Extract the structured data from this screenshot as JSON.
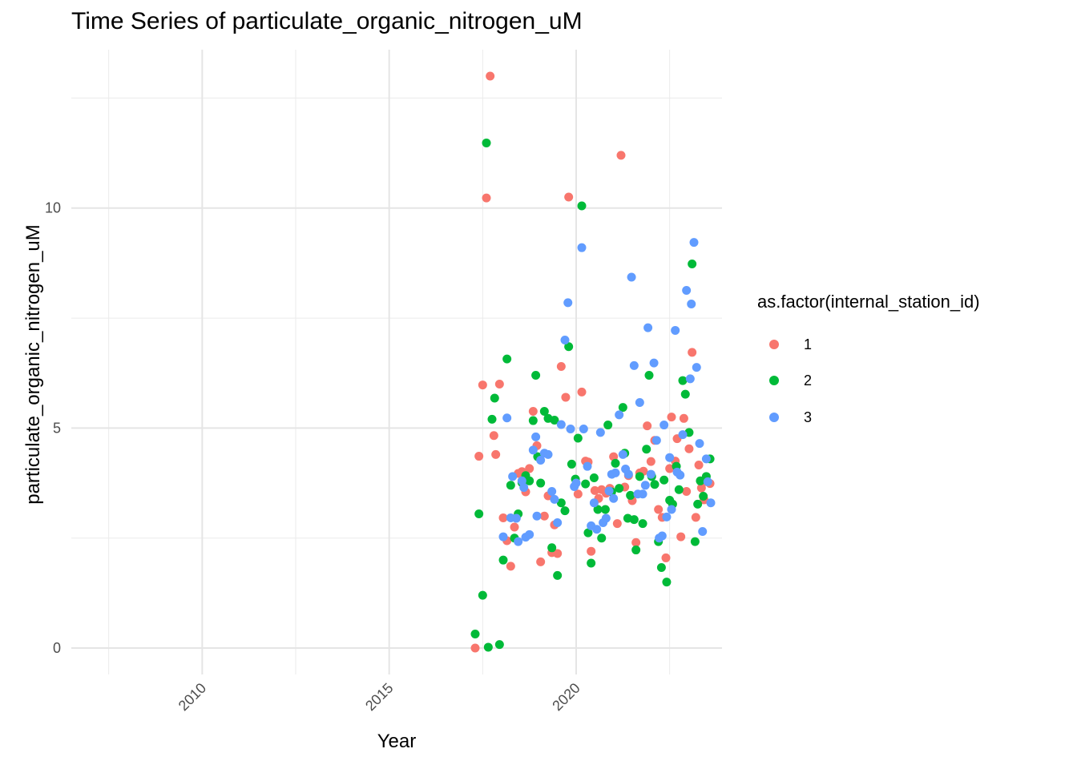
{
  "chart_data": {
    "type": "scatter",
    "title": "Time Series of particulate_organic_nitrogen_uM",
    "xlabel": "Year",
    "ylabel": "particulate_organic_nitrogen_uM",
    "x_ticks": [
      "2010",
      "2015",
      "2020"
    ],
    "y_ticks": [
      "0",
      "5",
      "10"
    ],
    "xlim": [
      2006.5,
      2023.9
    ],
    "ylim": [
      -0.6,
      13.6
    ],
    "grid": true,
    "legend": {
      "title": "as.factor(internal_station_id)",
      "position": "right"
    },
    "series": [
      {
        "name": "1",
        "color": "#F8766D",
        "points": [
          [
            2017.3,
            0.0
          ],
          [
            2017.4,
            4.36
          ],
          [
            2017.5,
            5.98
          ],
          [
            2017.6,
            10.23
          ],
          [
            2017.7,
            13.0
          ],
          [
            2017.8,
            4.83
          ],
          [
            2017.85,
            4.4
          ],
          [
            2017.95,
            6.0
          ],
          [
            2018.05,
            2.96
          ],
          [
            2018.15,
            2.44
          ],
          [
            2018.25,
            1.86
          ],
          [
            2018.35,
            2.75
          ],
          [
            2018.45,
            3.97
          ],
          [
            2018.55,
            4.01
          ],
          [
            2018.65,
            3.55
          ],
          [
            2018.75,
            4.08
          ],
          [
            2018.85,
            5.38
          ],
          [
            2018.95,
            4.6
          ],
          [
            2019.05,
            1.96
          ],
          [
            2019.15,
            3.0
          ],
          [
            2019.25,
            3.46
          ],
          [
            2019.35,
            2.17
          ],
          [
            2019.42,
            2.8
          ],
          [
            2019.5,
            2.15
          ],
          [
            2019.6,
            6.4
          ],
          [
            2019.72,
            5.7
          ],
          [
            2019.8,
            10.25
          ],
          [
            2020.05,
            3.5
          ],
          [
            2020.15,
            5.82
          ],
          [
            2020.25,
            4.25
          ],
          [
            2020.32,
            4.23
          ],
          [
            2020.4,
            2.2
          ],
          [
            2020.5,
            3.58
          ],
          [
            2020.6,
            3.4
          ],
          [
            2020.68,
            3.6
          ],
          [
            2020.8,
            3.52
          ],
          [
            2020.9,
            3.63
          ],
          [
            2021.0,
            4.35
          ],
          [
            2021.1,
            2.83
          ],
          [
            2021.2,
            11.2
          ],
          [
            2021.3,
            3.66
          ],
          [
            2021.4,
            3.92
          ],
          [
            2021.5,
            3.35
          ],
          [
            2021.6,
            2.4
          ],
          [
            2021.7,
            3.98
          ],
          [
            2021.8,
            4.02
          ],
          [
            2021.9,
            5.05
          ],
          [
            2022.0,
            4.24
          ],
          [
            2022.1,
            4.72
          ],
          [
            2022.2,
            3.15
          ],
          [
            2022.3,
            2.97
          ],
          [
            2022.4,
            2.05
          ],
          [
            2022.5,
            4.08
          ],
          [
            2022.55,
            5.25
          ],
          [
            2022.65,
            4.25
          ],
          [
            2022.7,
            4.76
          ],
          [
            2022.8,
            2.53
          ],
          [
            2022.88,
            5.22
          ],
          [
            2022.95,
            3.56
          ],
          [
            2023.02,
            4.53
          ],
          [
            2023.1,
            6.72
          ],
          [
            2023.2,
            2.97
          ],
          [
            2023.28,
            4.16
          ],
          [
            2023.35,
            3.64
          ],
          [
            2023.42,
            3.37
          ],
          [
            2023.5,
            3.78
          ],
          [
            2023.58,
            3.74
          ]
        ]
      },
      {
        "name": "2",
        "color": "#00BA38",
        "points": [
          [
            2017.3,
            0.32
          ],
          [
            2017.4,
            3.05
          ],
          [
            2017.5,
            1.2
          ],
          [
            2017.6,
            11.48
          ],
          [
            2017.65,
            0.02
          ],
          [
            2017.75,
            5.2
          ],
          [
            2017.82,
            5.68
          ],
          [
            2017.95,
            0.08
          ],
          [
            2018.05,
            2.0
          ],
          [
            2018.15,
            6.57
          ],
          [
            2018.25,
            3.7
          ],
          [
            2018.35,
            2.5
          ],
          [
            2018.45,
            3.05
          ],
          [
            2018.55,
            3.76
          ],
          [
            2018.65,
            3.92
          ],
          [
            2018.75,
            3.8
          ],
          [
            2018.85,
            5.17
          ],
          [
            2018.92,
            6.2
          ],
          [
            2018.97,
            4.35
          ],
          [
            2019.05,
            3.75
          ],
          [
            2019.15,
            5.38
          ],
          [
            2019.25,
            5.22
          ],
          [
            2019.35,
            2.28
          ],
          [
            2019.42,
            5.18
          ],
          [
            2019.5,
            1.65
          ],
          [
            2019.6,
            3.3
          ],
          [
            2019.7,
            3.12
          ],
          [
            2019.8,
            6.85
          ],
          [
            2019.88,
            4.18
          ],
          [
            2019.98,
            3.84
          ],
          [
            2020.05,
            4.77
          ],
          [
            2020.15,
            10.05
          ],
          [
            2020.25,
            3.73
          ],
          [
            2020.32,
            2.62
          ],
          [
            2020.4,
            1.93
          ],
          [
            2020.48,
            3.87
          ],
          [
            2020.58,
            3.15
          ],
          [
            2020.68,
            2.5
          ],
          [
            2020.78,
            3.15
          ],
          [
            2020.85,
            5.07
          ],
          [
            2020.95,
            3.55
          ],
          [
            2021.05,
            4.2
          ],
          [
            2021.15,
            3.63
          ],
          [
            2021.25,
            5.47
          ],
          [
            2021.3,
            4.43
          ],
          [
            2021.38,
            2.95
          ],
          [
            2021.45,
            3.47
          ],
          [
            2021.55,
            2.92
          ],
          [
            2021.6,
            2.23
          ],
          [
            2021.7,
            3.9
          ],
          [
            2021.78,
            2.83
          ],
          [
            2021.88,
            4.52
          ],
          [
            2021.95,
            6.2
          ],
          [
            2022.02,
            3.9
          ],
          [
            2022.1,
            3.72
          ],
          [
            2022.2,
            2.42
          ],
          [
            2022.28,
            1.83
          ],
          [
            2022.35,
            3.82
          ],
          [
            2022.42,
            1.5
          ],
          [
            2022.5,
            3.36
          ],
          [
            2022.58,
            3.27
          ],
          [
            2022.68,
            4.13
          ],
          [
            2022.75,
            3.6
          ],
          [
            2022.85,
            6.08
          ],
          [
            2022.92,
            5.77
          ],
          [
            2023.02,
            4.9
          ],
          [
            2023.1,
            8.73
          ],
          [
            2023.18,
            2.42
          ],
          [
            2023.25,
            3.27
          ],
          [
            2023.32,
            3.8
          ],
          [
            2023.4,
            3.45
          ],
          [
            2023.48,
            3.9
          ],
          [
            2023.58,
            4.3
          ]
        ]
      },
      {
        "name": "3",
        "color": "#619CFF",
        "points": [
          [
            2018.05,
            2.53
          ],
          [
            2018.15,
            5.23
          ],
          [
            2018.25,
            2.96
          ],
          [
            2018.3,
            3.9
          ],
          [
            2018.4,
            2.95
          ],
          [
            2018.45,
            2.42
          ],
          [
            2018.55,
            3.8
          ],
          [
            2018.6,
            3.65
          ],
          [
            2018.65,
            2.52
          ],
          [
            2018.75,
            2.58
          ],
          [
            2018.85,
            4.5
          ],
          [
            2018.92,
            4.8
          ],
          [
            2018.95,
            3.0
          ],
          [
            2019.05,
            4.27
          ],
          [
            2019.15,
            4.43
          ],
          [
            2019.25,
            4.4
          ],
          [
            2019.35,
            3.56
          ],
          [
            2019.42,
            3.38
          ],
          [
            2019.5,
            2.85
          ],
          [
            2019.6,
            5.08
          ],
          [
            2019.7,
            7.0
          ],
          [
            2019.78,
            7.85
          ],
          [
            2019.85,
            4.98
          ],
          [
            2019.95,
            3.67
          ],
          [
            2020.0,
            3.75
          ],
          [
            2020.15,
            9.1
          ],
          [
            2020.2,
            4.98
          ],
          [
            2020.3,
            4.13
          ],
          [
            2020.4,
            2.78
          ],
          [
            2020.48,
            3.3
          ],
          [
            2020.55,
            2.7
          ],
          [
            2020.65,
            4.9
          ],
          [
            2020.72,
            2.85
          ],
          [
            2020.8,
            2.95
          ],
          [
            2020.88,
            3.57
          ],
          [
            2020.95,
            3.95
          ],
          [
            2021.0,
            3.4
          ],
          [
            2021.05,
            3.98
          ],
          [
            2021.15,
            5.3
          ],
          [
            2021.25,
            4.4
          ],
          [
            2021.32,
            4.07
          ],
          [
            2021.4,
            3.95
          ],
          [
            2021.48,
            8.43
          ],
          [
            2021.55,
            6.42
          ],
          [
            2021.65,
            3.5
          ],
          [
            2021.7,
            5.58
          ],
          [
            2021.78,
            3.5
          ],
          [
            2021.85,
            3.7
          ],
          [
            2021.92,
            7.28
          ],
          [
            2022.0,
            3.95
          ],
          [
            2022.08,
            6.48
          ],
          [
            2022.15,
            4.72
          ],
          [
            2022.22,
            2.5
          ],
          [
            2022.3,
            2.55
          ],
          [
            2022.35,
            5.07
          ],
          [
            2022.42,
            2.98
          ],
          [
            2022.5,
            4.33
          ],
          [
            2022.55,
            3.15
          ],
          [
            2022.65,
            7.22
          ],
          [
            2022.7,
            4.0
          ],
          [
            2022.78,
            3.93
          ],
          [
            2022.85,
            4.85
          ],
          [
            2022.95,
            8.13
          ],
          [
            2023.05,
            6.12
          ],
          [
            2023.08,
            7.82
          ],
          [
            2023.15,
            9.22
          ],
          [
            2023.22,
            6.38
          ],
          [
            2023.3,
            4.65
          ],
          [
            2023.38,
            2.65
          ],
          [
            2023.48,
            4.3
          ],
          [
            2023.52,
            3.78
          ],
          [
            2023.6,
            3.3
          ]
        ]
      }
    ]
  }
}
